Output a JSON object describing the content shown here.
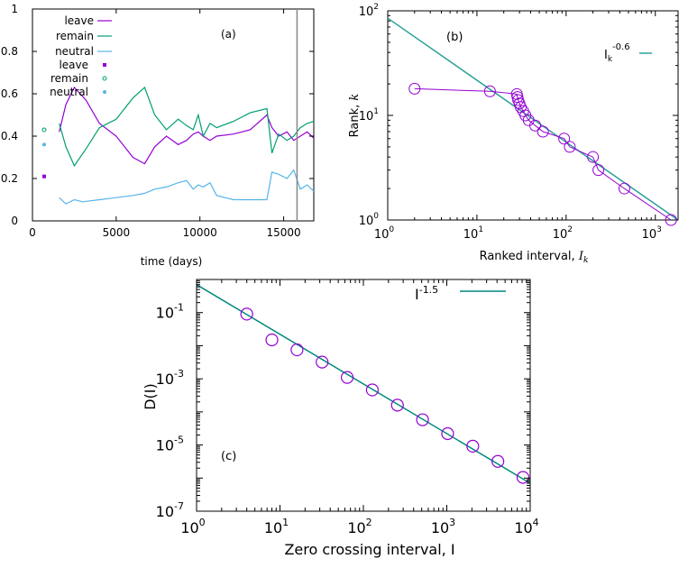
{
  "chart_data": [
    {
      "panel": "(a)",
      "type": "line",
      "title": "",
      "xlabel": "time (days)",
      "ylabel": "",
      "xlim": [
        0,
        16800
      ],
      "ylim": [
        0,
        1
      ],
      "xticks": [
        "0",
        "5000",
        "10000",
        "15000"
      ],
      "yticks": [
        "0",
        "0.2",
        "0.4",
        "0.6",
        "0.8",
        "1"
      ],
      "legend": [
        "leave",
        "remain",
        "neutral",
        "leave",
        "remain",
        "neutral"
      ],
      "vline_x": 15800,
      "colors": {
        "leave": "#9400d3",
        "remain": "#009e73",
        "neutral": "#56b4e9"
      },
      "series": [
        {
          "name": "leave",
          "x": [
            1600,
            2000,
            2500,
            3200,
            4000,
            5000,
            6000,
            6700,
            7300,
            8000,
            8700,
            9200,
            9600,
            9900,
            10200,
            10600,
            11000,
            12000,
            13000,
            14000,
            14300,
            14700,
            15200,
            15600,
            16000,
            16400,
            16800
          ],
          "y": [
            0.42,
            0.55,
            0.63,
            0.57,
            0.46,
            0.4,
            0.3,
            0.27,
            0.35,
            0.4,
            0.36,
            0.38,
            0.41,
            0.42,
            0.4,
            0.38,
            0.4,
            0.41,
            0.43,
            0.5,
            0.44,
            0.4,
            0.42,
            0.38,
            0.4,
            0.42,
            0.39
          ]
        },
        {
          "name": "remain",
          "x": [
            1600,
            2000,
            2500,
            3200,
            4000,
            5000,
            6000,
            6700,
            7300,
            8000,
            8700,
            9200,
            9600,
            9900,
            10200,
            10600,
            11000,
            12000,
            13000,
            14000,
            14300,
            14700,
            15200,
            15600,
            16000,
            16400,
            16800
          ],
          "y": [
            0.46,
            0.35,
            0.26,
            0.34,
            0.44,
            0.48,
            0.58,
            0.63,
            0.5,
            0.43,
            0.48,
            0.45,
            0.43,
            0.5,
            0.4,
            0.46,
            0.44,
            0.47,
            0.51,
            0.53,
            0.32,
            0.41,
            0.38,
            0.4,
            0.44,
            0.46,
            0.47
          ]
        },
        {
          "name": "neutral",
          "x": [
            1600,
            2000,
            2500,
            3000,
            4000,
            5000,
            6000,
            6700,
            7300,
            8000,
            8700,
            9200,
            9600,
            9900,
            10200,
            10600,
            11000,
            12000,
            13000,
            14000,
            14300,
            14700,
            15200,
            15600,
            16000,
            16400,
            16800
          ],
          "y": [
            0.11,
            0.08,
            0.1,
            0.09,
            0.1,
            0.11,
            0.12,
            0.13,
            0.15,
            0.16,
            0.18,
            0.19,
            0.15,
            0.17,
            0.16,
            0.18,
            0.12,
            0.1,
            0.1,
            0.1,
            0.23,
            0.22,
            0.2,
            0.24,
            0.15,
            0.17,
            0.14
          ]
        }
      ],
      "points": [
        {
          "name": "leave",
          "x": 700,
          "y": 0.21
        },
        {
          "name": "remain",
          "x": 700,
          "y": 0.43
        },
        {
          "name": "neutral",
          "x": 700,
          "y": 0.36
        }
      ]
    },
    {
      "panel": "(b)",
      "type": "scatter",
      "title": "",
      "xlabel": "Ranked interval, I_k",
      "ylabel": "Rank, k",
      "xscale": "log",
      "yscale": "log",
      "xlim": [
        1,
        1800
      ],
      "ylim": [
        1,
        100
      ],
      "xticks": [
        "10^0",
        "10^1",
        "10^2",
        "10^3"
      ],
      "yticks": [
        "10^0",
        "10^1",
        "10^2"
      ],
      "legend": [
        "I_k^-0.6"
      ],
      "fit": {
        "label": "I_k^-0.6",
        "exponent": -0.6,
        "prefactor": 85
      },
      "x": [
        2,
        14,
        28,
        28.5,
        29,
        30,
        31,
        33,
        35,
        38,
        45,
        55,
        95,
        110,
        200,
        230,
        450,
        1500
      ],
      "y": [
        18,
        17,
        16,
        15,
        14,
        13,
        12,
        11,
        10,
        9,
        8,
        7,
        6,
        5,
        4,
        3,
        2,
        1
      ]
    },
    {
      "panel": "(c)",
      "type": "scatter",
      "title": "",
      "xlabel": "Zero crossing interval, I",
      "ylabel": "D(I)",
      "xscale": "log",
      "yscale": "log",
      "xlim": [
        1,
        10000
      ],
      "ylim": [
        1e-07,
        1
      ],
      "xticks": [
        "10^0",
        "10^1",
        "10^2",
        "10^3",
        "10^4"
      ],
      "yticks": [
        "10^-7",
        "10^-5",
        "10^-3",
        "10^-1"
      ],
      "legend": [
        "I^-1.5"
      ],
      "fit": {
        "label": "I^-1.5",
        "exponent": -1.5,
        "prefactor": 0.7
      },
      "x": [
        4,
        8,
        16,
        32,
        64,
        128,
        256,
        512,
        1024,
        2048,
        4096,
        8192
      ],
      "y": [
        0.09,
        0.015,
        0.0075,
        0.0032,
        0.0011,
        0.00046,
        0.00016,
        5.8e-05,
        2.2e-05,
        9.2e-06,
        3.2e-06,
        1.05e-06
      ]
    }
  ],
  "labels": {
    "a": {
      "panel": "(a)",
      "xlabel": "time (days)",
      "xticks": [
        "0",
        "5000",
        "10000",
        "15000"
      ],
      "yticks": [
        "0",
        "0.2",
        "0.4",
        "0.6",
        "0.8",
        "1"
      ],
      "legend": [
        "leave",
        "remain",
        "neutral",
        "leave",
        "remain",
        "neutral"
      ]
    },
    "b": {
      "panel": "(b)",
      "xlabel": "Ranked interval, ",
      "xlabel_sym": "I",
      "xlabel_sub": "k",
      "ylabel": "Rank, ",
      "ylabel_sym": "k",
      "xticks_base": "10",
      "xticks_exp": [
        "0",
        "1",
        "2",
        "3"
      ],
      "yticks_base": "10",
      "yticks_exp": [
        "0",
        "1",
        "2"
      ],
      "legend_base": "I",
      "legend_sub": "k",
      "legend_exp": "-0.6"
    },
    "c": {
      "panel": "(c)",
      "xlabel": "Zero crossing interval, I",
      "ylabel": "D(I)",
      "xticks_base": "10",
      "xticks_exp": [
        "0",
        "1",
        "2",
        "3",
        "4"
      ],
      "yticks_base": "10",
      "yticks_exp": [
        "-7",
        "-5",
        "-3",
        "-1"
      ],
      "legend_base": "I",
      "legend_exp": "-1.5"
    }
  }
}
